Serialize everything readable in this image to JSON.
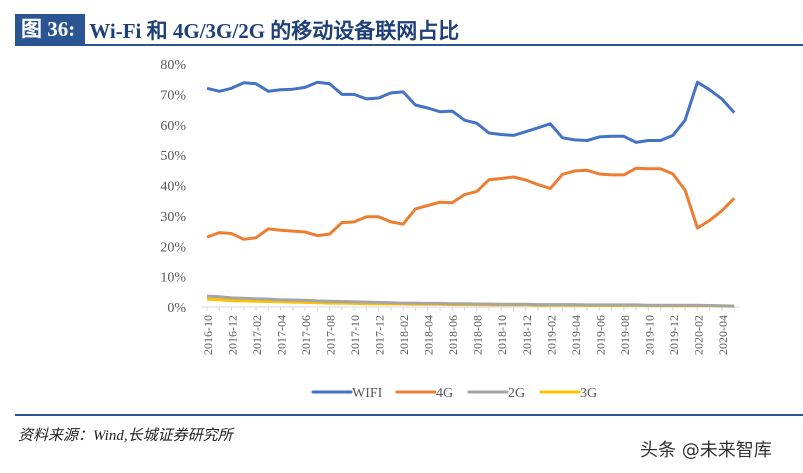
{
  "header": {
    "figure_label": "图 36:",
    "title": "Wi-Fi 和 4G/3G/2G 的移动设备联网占比"
  },
  "source": "资料来源：Wind,长城证券研究所",
  "watermark": "头条 @未来智库",
  "chart_data": {
    "type": "line",
    "ylim": [
      0,
      80
    ],
    "yticks": [
      "0%",
      "10%",
      "20%",
      "30%",
      "40%",
      "50%",
      "60%",
      "70%",
      "80%"
    ],
    "xtick_labels": [
      "2016-10",
      "2016-12",
      "2017-02",
      "2017-04",
      "2017-06",
      "2017-08",
      "2017-10",
      "2017-12",
      "2018-02",
      "2018-04",
      "2018-06",
      "2018-08",
      "2018-10",
      "2018-12",
      "2019-02",
      "2019-04",
      "2019-06",
      "2019-08",
      "2019-10",
      "2019-12",
      "2020-02",
      "2020-04"
    ],
    "x": [
      "2016-10",
      "2016-11",
      "2016-12",
      "2017-01",
      "2017-02",
      "2017-03",
      "2017-04",
      "2017-05",
      "2017-06",
      "2017-07",
      "2017-08",
      "2017-09",
      "2017-10",
      "2017-11",
      "2017-12",
      "2018-01",
      "2018-02",
      "2018-03",
      "2018-04",
      "2018-05",
      "2018-06",
      "2018-07",
      "2018-08",
      "2018-09",
      "2018-10",
      "2018-11",
      "2018-12",
      "2019-01",
      "2019-02",
      "2019-03",
      "2019-04",
      "2019-05",
      "2019-06",
      "2019-07",
      "2019-08",
      "2019-09",
      "2019-10",
      "2019-11",
      "2019-12",
      "2020-01",
      "2020-02",
      "2020-03",
      "2020-04",
      "2020-05"
    ],
    "legend_position": "bottom",
    "grid": false,
    "series": [
      {
        "name": "WIFI",
        "color": "#4472c4",
        "values": [
          72,
          71,
          72,
          73.8,
          73.5,
          71,
          71.5,
          71.7,
          72.3,
          74,
          73.5,
          70,
          70,
          68.5,
          68.8,
          70.5,
          70.8,
          66.5,
          65.5,
          64.3,
          64.5,
          61.5,
          60.5,
          57.3,
          56.8,
          56.5,
          57.7,
          59,
          60.3,
          55.7,
          55,
          54.8,
          56,
          56.2,
          56.2,
          54.2,
          54.8,
          54.8,
          56.5,
          61.5,
          74,
          71.5,
          68.5,
          64
        ]
      },
      {
        "name": "4G",
        "color": "#ed7d31",
        "values": [
          23,
          24.5,
          24.2,
          22.3,
          22.8,
          25.7,
          25.3,
          25,
          24.7,
          23.5,
          24,
          27.8,
          28,
          29.7,
          29.7,
          28,
          27.3,
          32.3,
          33.4,
          34.5,
          34.3,
          37,
          38,
          41.9,
          42.3,
          42.8,
          41.8,
          40.3,
          39,
          43.7,
          44.8,
          45,
          43.8,
          43.5,
          43.5,
          45.7,
          45.5,
          45.5,
          43.8,
          38.5,
          26,
          28.5,
          31.7,
          35.8
        ]
      },
      {
        "name": "2G",
        "color": "#a5a5a5",
        "values": [
          3.6,
          3.4,
          3.0,
          2.9,
          2.7,
          2.6,
          2.4,
          2.3,
          2.2,
          2.0,
          1.9,
          1.8,
          1.7,
          1.6,
          1.5,
          1.4,
          1.3,
          1.3,
          1.2,
          1.2,
          1.1,
          1.1,
          1.0,
          1.0,
          0.9,
          0.9,
          0.9,
          0.8,
          0.8,
          0.8,
          0.8,
          0.7,
          0.7,
          0.7,
          0.7,
          0.7,
          0.6,
          0.6,
          0.6,
          0.6,
          0.6,
          0.5,
          0.4,
          0.3
        ]
      },
      {
        "name": "3G",
        "color": "#ffc000",
        "values": [
          2.6,
          2.4,
          2.1,
          2.0,
          1.9,
          1.8,
          1.7,
          1.6,
          1.5,
          1.4,
          1.3,
          1.3,
          1.2,
          1.1,
          1.1,
          1.0,
          1.0,
          0.9,
          0.9,
          0.9,
          0.8,
          0.8,
          0.8,
          0.7,
          0.7,
          0.7,
          0.7,
          0.6,
          0.6,
          0.6,
          0.6,
          0.5,
          0.5,
          0.5,
          0.5,
          0.5,
          0.5,
          0.4,
          0.4,
          0.4,
          0.4,
          0.4,
          0.3,
          0.3
        ]
      }
    ]
  }
}
